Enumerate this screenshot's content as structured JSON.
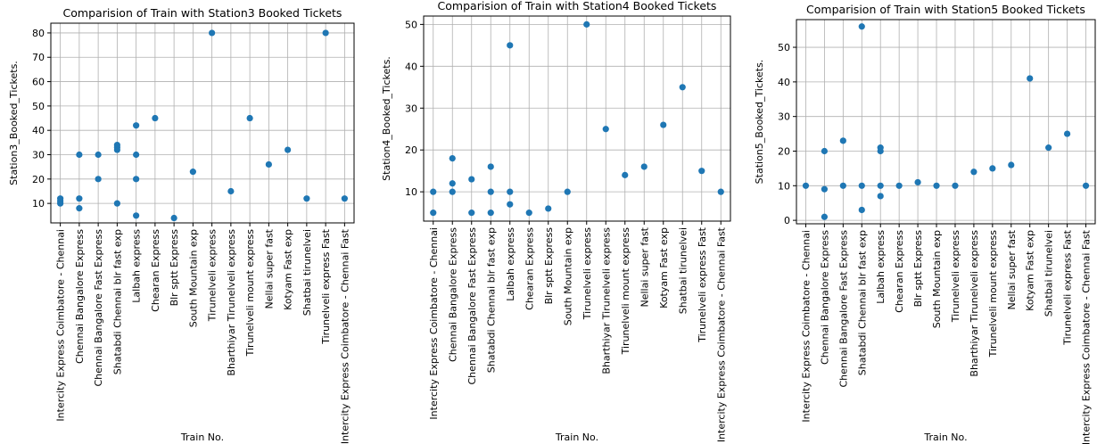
{
  "colors": {
    "marker": "#1f77b4",
    "grid": "#b0b0b0",
    "axis": "#000000",
    "background": "#ffffff"
  },
  "chart_data": [
    {
      "type": "scatter",
      "title": "Comparision of Train with Station3 Booked Tickets",
      "xlabel": "Train No.",
      "ylabel": "Station3_Booked_Tickets.",
      "grid": true,
      "ylim": [
        2,
        84
      ],
      "yticks": [
        10,
        20,
        30,
        40,
        50,
        60,
        70,
        80
      ],
      "categories": [
        "Intercity Express Coimbatore - Chennai",
        "Chennai Bangalore Express",
        "Chennai Bangalore Fast Express",
        "Shatabdi Chennai blr fast exp",
        "Lalbah express",
        "Chearan Express",
        "Blr sptt Express",
        "South Mountain exp",
        "Tirunelveli express",
        "Bharthiyar Tirunelveli express",
        "Tirunelveli mount express",
        "Nellai super fast",
        "Kotyam Fast exp",
        "Shatbai tirunelvei",
        "Tirunelveli express Fast",
        "Intercity Express Coimbatore - Chennai Fast"
      ],
      "points": [
        [
          "Intercity Express Coimbatore - Chennai",
          10
        ],
        [
          "Intercity Express Coimbatore - Chennai",
          11
        ],
        [
          "Intercity Express Coimbatore - Chennai",
          12
        ],
        [
          "Chennai Bangalore Express",
          8
        ],
        [
          "Chennai Bangalore Express",
          12
        ],
        [
          "Chennai Bangalore Express",
          30
        ],
        [
          "Chennai Bangalore Fast Express",
          20
        ],
        [
          "Chennai Bangalore Fast Express",
          30
        ],
        [
          "Shatabdi Chennai blr fast exp",
          10
        ],
        [
          "Shatabdi Chennai blr fast exp",
          32
        ],
        [
          "Shatabdi Chennai blr fast exp",
          33
        ],
        [
          "Shatabdi Chennai blr fast exp",
          34
        ],
        [
          "Lalbah express",
          5
        ],
        [
          "Lalbah express",
          20
        ],
        [
          "Lalbah express",
          30
        ],
        [
          "Lalbah express",
          42
        ],
        [
          "Chearan Express",
          45
        ],
        [
          "Blr sptt Express",
          4
        ],
        [
          "South Mountain exp",
          23
        ],
        [
          "Tirunelveli express",
          80
        ],
        [
          "Bharthiyar Tirunelveli express",
          15
        ],
        [
          "Tirunelveli mount express",
          45
        ],
        [
          "Nellai super fast",
          26
        ],
        [
          "Kotyam Fast exp",
          32
        ],
        [
          "Shatbai tirunelvei",
          12
        ],
        [
          "Tirunelveli express Fast",
          80
        ],
        [
          "Intercity Express Coimbatore - Chennai Fast",
          12
        ]
      ]
    },
    {
      "type": "scatter",
      "title": "Comparision of Train with Station4 Booked Tickets",
      "xlabel": "Train No.",
      "ylabel": "Station4_Booked_Tickets.",
      "grid": true,
      "ylim": [
        3,
        52
      ],
      "yticks": [
        10,
        20,
        30,
        40,
        50
      ],
      "categories": [
        "Intercity Express Coimbatore - Chennai",
        "Chennai Bangalore Express",
        "Chennai Bangalore Fast Express",
        "Shatabdi Chennai blr fast exp",
        "Lalbah express",
        "Chearan Express",
        "Blr sptt Express",
        "South Mountain exp",
        "Tirunelveli express",
        "Bharthiyar Tirunelveli express",
        "Tirunelveli mount express",
        "Nellai super fast",
        "Kotyam Fast exp",
        "Shatbai tirunelvei",
        "Tirunelveli express Fast",
        "Intercity Express Coimbatore - Chennai Fast"
      ],
      "points": [
        [
          "Intercity Express Coimbatore - Chennai",
          5
        ],
        [
          "Intercity Express Coimbatore - Chennai",
          10
        ],
        [
          "Chennai Bangalore Express",
          10
        ],
        [
          "Chennai Bangalore Express",
          12
        ],
        [
          "Chennai Bangalore Express",
          18
        ],
        [
          "Chennai Bangalore Fast Express",
          5
        ],
        [
          "Chennai Bangalore Fast Express",
          13
        ],
        [
          "Shatabdi Chennai blr fast exp",
          5
        ],
        [
          "Shatabdi Chennai blr fast exp",
          10
        ],
        [
          "Shatabdi Chennai blr fast exp",
          16
        ],
        [
          "Lalbah express",
          7
        ],
        [
          "Lalbah express",
          10
        ],
        [
          "Lalbah express",
          45
        ],
        [
          "Chearan Express",
          5
        ],
        [
          "Blr sptt Express",
          6
        ],
        [
          "South Mountain exp",
          10
        ],
        [
          "Tirunelveli express",
          50
        ],
        [
          "Bharthiyar Tirunelveli express",
          25
        ],
        [
          "Tirunelveli mount express",
          14
        ],
        [
          "Nellai super fast",
          16
        ],
        [
          "Kotyam Fast exp",
          26
        ],
        [
          "Shatbai tirunelvei",
          35
        ],
        [
          "Tirunelveli express Fast",
          15
        ],
        [
          "Intercity Express Coimbatore - Chennai Fast",
          10
        ]
      ]
    },
    {
      "type": "scatter",
      "title": "Comparision of Train with Station5 Booked Tickets",
      "xlabel": "Train No.",
      "ylabel": "Station5_Booked_Tickets.",
      "grid": true,
      "ylim": [
        -1,
        58
      ],
      "yticks": [
        0,
        10,
        20,
        30,
        40,
        50
      ],
      "categories": [
        "Intercity Express Coimbatore - Chennai",
        "Chennai Bangalore Express",
        "Chennai Bangalore Fast Express",
        "Shatabdi Chennai blr fast exp",
        "Lalbah express",
        "Chearan Express",
        "Blr sptt Express",
        "South Mountain exp",
        "Tirunelveli express",
        "Bharthiyar Tirunelveli express",
        "Tirunelveli mount express",
        "Nellai super fast",
        "Kotyam Fast exp",
        "Shatbai tirunelvei",
        "Tirunelveli express Fast",
        "Intercity Express Coimbatore - Chennai Fast"
      ],
      "points": [
        [
          "Intercity Express Coimbatore - Chennai",
          10
        ],
        [
          "Chennai Bangalore Express",
          1
        ],
        [
          "Chennai Bangalore Express",
          9
        ],
        [
          "Chennai Bangalore Express",
          20
        ],
        [
          "Chennai Bangalore Fast Express",
          10
        ],
        [
          "Chennai Bangalore Fast Express",
          23
        ],
        [
          "Shatabdi Chennai blr fast exp",
          3
        ],
        [
          "Shatabdi Chennai blr fast exp",
          10
        ],
        [
          "Shatabdi Chennai blr fast exp",
          56
        ],
        [
          "Lalbah express",
          7
        ],
        [
          "Lalbah express",
          10
        ],
        [
          "Lalbah express",
          20
        ],
        [
          "Lalbah express",
          21
        ],
        [
          "Chearan Express",
          10
        ],
        [
          "Blr sptt Express",
          11
        ],
        [
          "South Mountain exp",
          10
        ],
        [
          "Tirunelveli express",
          10
        ],
        [
          "Bharthiyar Tirunelveli express",
          14
        ],
        [
          "Tirunelveli mount express",
          15
        ],
        [
          "Nellai super fast",
          16
        ],
        [
          "Kotyam Fast exp",
          41
        ],
        [
          "Shatbai tirunelvei",
          21
        ],
        [
          "Tirunelveli express Fast",
          25
        ],
        [
          "Intercity Express Coimbatore - Chennai Fast",
          10
        ]
      ]
    }
  ]
}
